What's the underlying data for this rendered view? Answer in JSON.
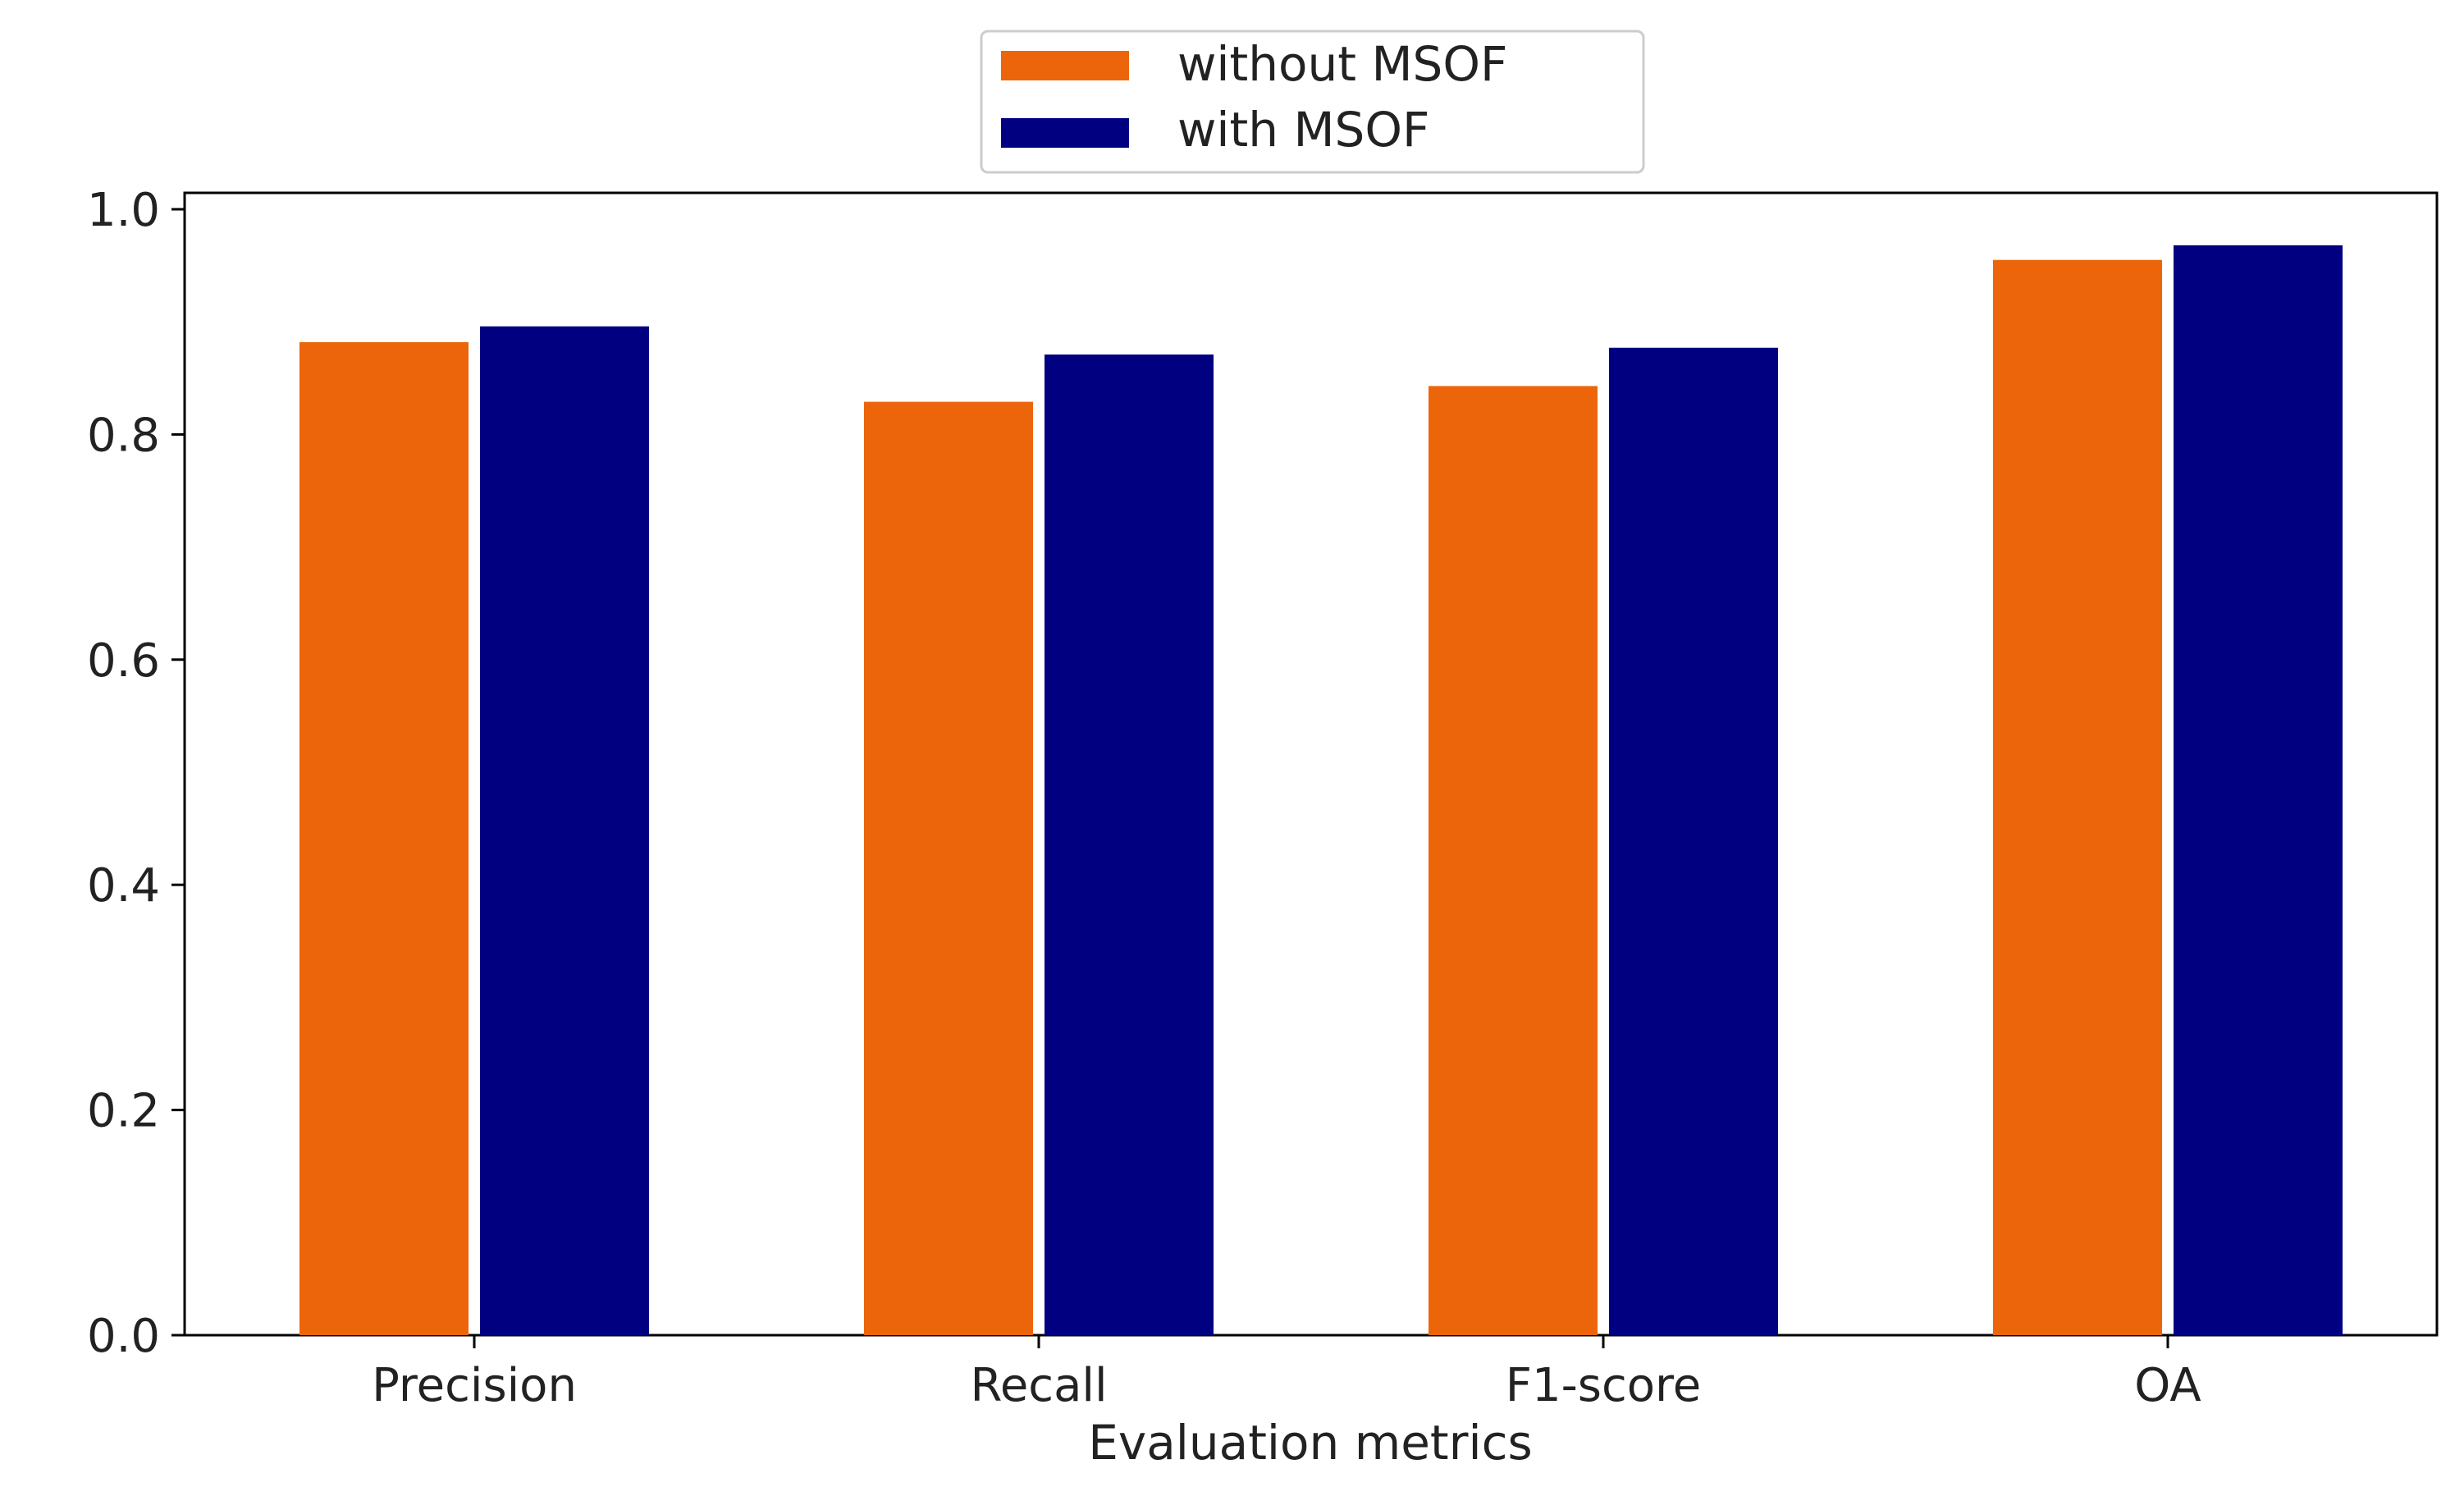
{
  "chart_data": {
    "type": "bar",
    "title": "",
    "xlabel": "Evaluation metrics",
    "ylabel": "",
    "categories": [
      "Precision",
      "Recall",
      "F1-score",
      "OA"
    ],
    "series": [
      {
        "name": "without MSOF",
        "color": "#ec650b",
        "values": [
          0.882,
          0.829,
          0.843,
          0.955
        ]
      },
      {
        "name": "with MSOF",
        "color": "#000080",
        "values": [
          0.896,
          0.871,
          0.877,
          0.968
        ]
      }
    ],
    "ylim": [
      0,
      1.0
    ],
    "yticks": [
      0.0,
      0.2,
      0.4,
      0.6,
      0.8,
      1.0
    ],
    "ytick_labels": [
      "0.0",
      "0.2",
      "0.4",
      "0.6",
      "0.8",
      "1.0"
    ],
    "grid": false,
    "legend_position": "top-center"
  }
}
